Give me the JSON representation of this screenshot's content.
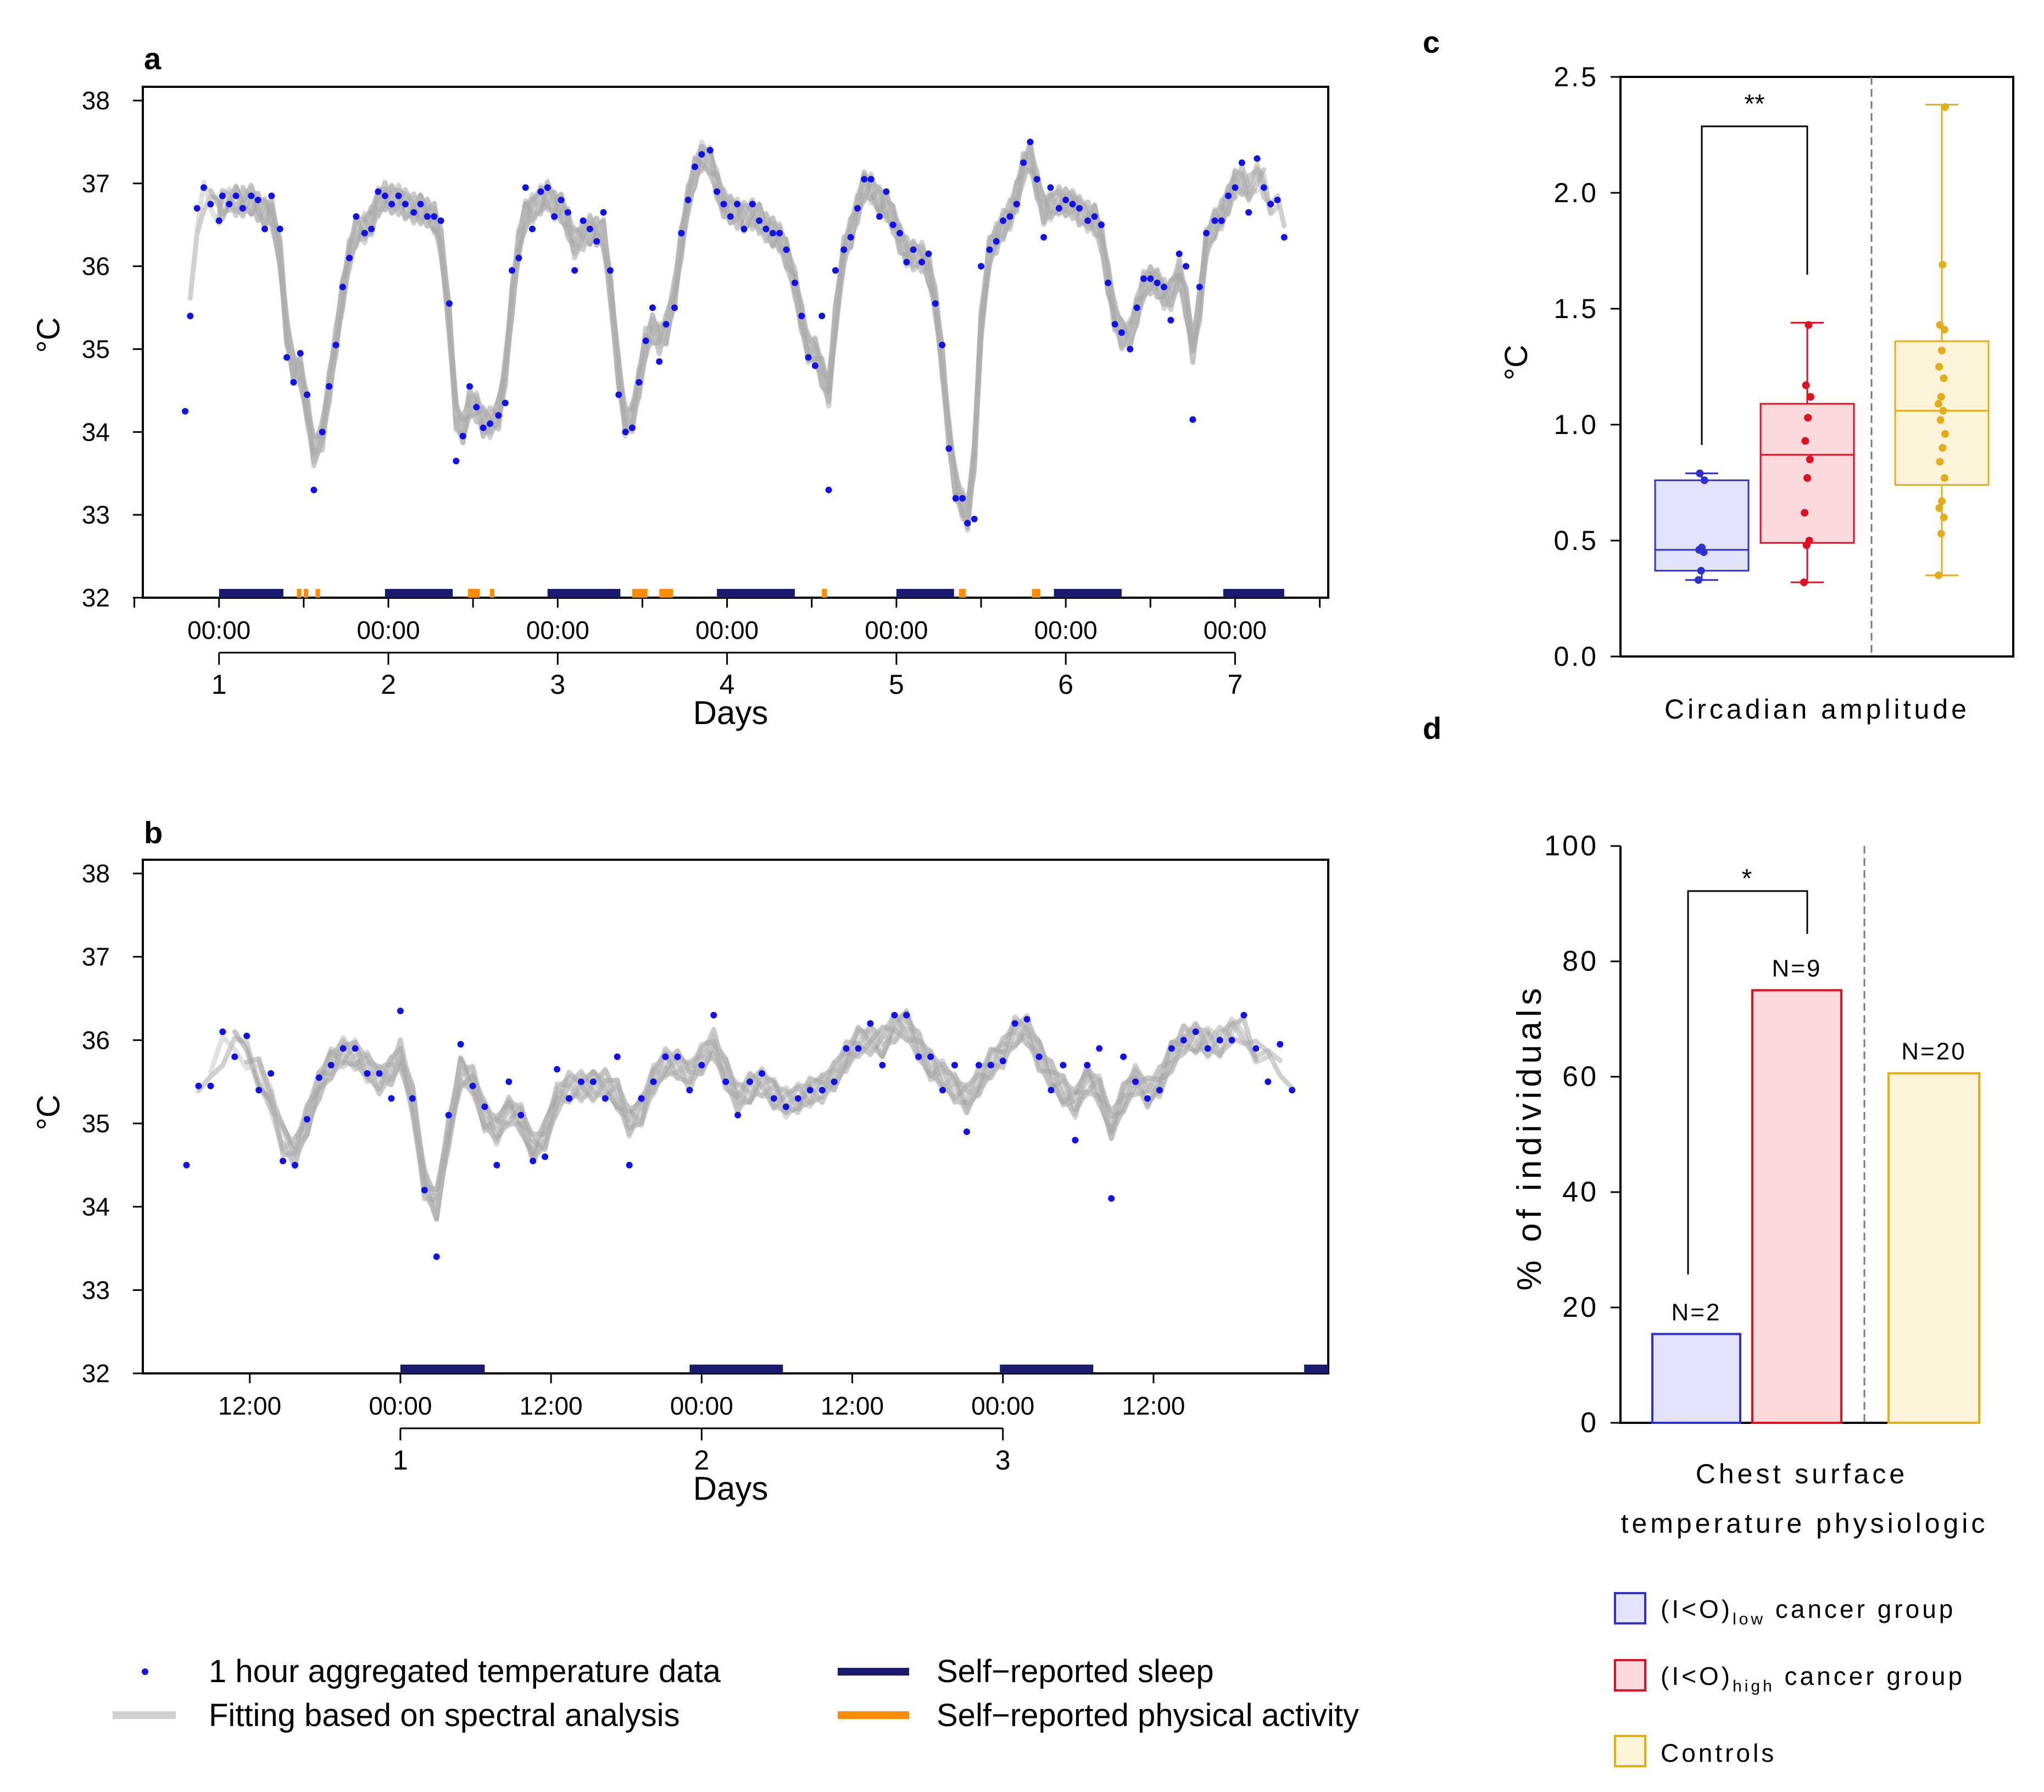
{
  "colors": {
    "temp_point": "#1010f0",
    "fit_line": "#9a9a9a",
    "sleep": "#1a1a6e",
    "activity": "#ff8c00",
    "low_fill": "#e2e2fa",
    "low_stroke": "#3030d0",
    "high_fill": "#fadadd",
    "high_stroke": "#e01020",
    "ctrl_fill": "#fdf3d8",
    "ctrl_stroke": "#e3ad18"
  },
  "panels": {
    "a": {
      "label": "a"
    },
    "b": {
      "label": "b"
    },
    "c": {
      "label": "c"
    },
    "d": {
      "label": "d"
    }
  },
  "legend": {
    "points": "1 hour aggregated temperature data",
    "fit": "Fitting based on spectral analysis",
    "sleep": "Self−reported sleep",
    "activity": "Self−reported physical activity",
    "low_main": "(I<O)",
    "low_sub": "low",
    "low_rest": " cancer group",
    "high_main": "(I<O)",
    "high_sub": "high",
    "high_rest": " cancer group",
    "controls": "Controls"
  },
  "chart_data": [
    {
      "panel": "a",
      "type": "scatter",
      "ylabel": "°C",
      "xlabel": "Days",
      "ylim": [
        32,
        38
      ],
      "yticks": [
        32,
        33,
        34,
        35,
        36,
        37,
        38
      ],
      "xlim": [
        -0.45,
        6.55
      ],
      "time_tick_labels": [
        "00:00",
        "00:00",
        "00:00",
        "00:00",
        "00:00",
        "00:00",
        "00:00"
      ],
      "day_labels": [
        "1",
        "2",
        "3",
        "4",
        "5",
        "6",
        "7"
      ],
      "fit_curves": 8,
      "sleep_intervals": [
        [
          0.0,
          0.38
        ],
        [
          0.98,
          1.38
        ],
        [
          1.94,
          2.37
        ],
        [
          2.94,
          3.4
        ],
        [
          4.0,
          4.34
        ],
        [
          4.93,
          5.33
        ],
        [
          5.93,
          6.29
        ]
      ],
      "activity_intervals": [
        [
          0.46,
          0.48
        ],
        [
          0.5,
          0.52
        ],
        [
          0.57,
          0.59
        ],
        [
          1.47,
          1.54
        ],
        [
          1.6,
          1.62
        ],
        [
          2.44,
          2.53
        ],
        [
          2.6,
          2.68
        ],
        [
          3.56,
          3.59
        ],
        [
          4.37,
          4.41
        ],
        [
          4.8,
          4.85
        ]
      ],
      "points": [
        [
          -0.2,
          34.25
        ],
        [
          -0.17,
          35.4
        ],
        [
          -0.13,
          36.7
        ],
        [
          -0.09,
          36.95
        ],
        [
          -0.05,
          36.75
        ],
        [
          0.0,
          36.55
        ],
        [
          0.02,
          36.85
        ],
        [
          0.06,
          36.75
        ],
        [
          0.1,
          36.85
        ],
        [
          0.14,
          36.7
        ],
        [
          0.19,
          36.85
        ],
        [
          0.23,
          36.8
        ],
        [
          0.27,
          36.45
        ],
        [
          0.31,
          36.85
        ],
        [
          0.36,
          36.45
        ],
        [
          0.4,
          34.9
        ],
        [
          0.44,
          34.6
        ],
        [
          0.48,
          34.95
        ],
        [
          0.52,
          34.45
        ],
        [
          0.56,
          33.3
        ],
        [
          0.61,
          34.0
        ],
        [
          0.65,
          34.55
        ],
        [
          0.69,
          35.05
        ],
        [
          0.73,
          35.75
        ],
        [
          0.77,
          36.1
        ],
        [
          0.81,
          36.6
        ],
        [
          0.86,
          36.4
        ],
        [
          0.9,
          36.45
        ],
        [
          0.94,
          36.9
        ],
        [
          0.98,
          36.85
        ],
        [
          1.02,
          36.75
        ],
        [
          1.06,
          36.85
        ],
        [
          1.1,
          36.75
        ],
        [
          1.15,
          36.65
        ],
        [
          1.19,
          36.75
        ],
        [
          1.23,
          36.6
        ],
        [
          1.27,
          36.6
        ],
        [
          1.31,
          36.55
        ],
        [
          1.36,
          35.55
        ],
        [
          1.4,
          33.65
        ],
        [
          1.44,
          33.95
        ],
        [
          1.48,
          34.55
        ],
        [
          1.52,
          34.3
        ],
        [
          1.56,
          34.05
        ],
        [
          1.6,
          34.1
        ],
        [
          1.65,
          34.2
        ],
        [
          1.69,
          34.35
        ],
        [
          1.73,
          35.95
        ],
        [
          1.77,
          36.1
        ],
        [
          1.81,
          36.95
        ],
        [
          1.85,
          36.45
        ],
        [
          1.9,
          36.9
        ],
        [
          1.94,
          36.95
        ],
        [
          1.98,
          36.6
        ],
        [
          2.02,
          36.8
        ],
        [
          2.06,
          36.65
        ],
        [
          2.1,
          35.95
        ],
        [
          2.15,
          36.55
        ],
        [
          2.19,
          36.45
        ],
        [
          2.23,
          36.3
        ],
        [
          2.27,
          36.65
        ],
        [
          2.31,
          35.95
        ],
        [
          2.36,
          34.45
        ],
        [
          2.4,
          34.0
        ],
        [
          2.44,
          34.05
        ],
        [
          2.48,
          34.6
        ],
        [
          2.52,
          35.1
        ],
        [
          2.56,
          35.5
        ],
        [
          2.6,
          34.85
        ],
        [
          2.64,
          35.3
        ],
        [
          2.69,
          35.5
        ],
        [
          2.73,
          36.4
        ],
        [
          2.77,
          36.8
        ],
        [
          2.81,
          37.2
        ],
        [
          2.85,
          37.35
        ],
        [
          2.9,
          37.4
        ],
        [
          2.94,
          36.9
        ],
        [
          2.98,
          36.75
        ],
        [
          3.02,
          36.6
        ],
        [
          3.06,
          36.75
        ],
        [
          3.1,
          36.45
        ],
        [
          3.15,
          36.75
        ],
        [
          3.19,
          36.55
        ],
        [
          3.23,
          36.45
        ],
        [
          3.27,
          36.4
        ],
        [
          3.31,
          36.4
        ],
        [
          3.35,
          36.2
        ],
        [
          3.4,
          35.8
        ],
        [
          3.44,
          35.4
        ],
        [
          3.48,
          34.9
        ],
        [
          3.52,
          34.8
        ],
        [
          3.56,
          35.4
        ],
        [
          3.6,
          33.3
        ],
        [
          3.64,
          35.95
        ],
        [
          3.69,
          36.2
        ],
        [
          3.73,
          36.35
        ],
        [
          3.77,
          36.7
        ],
        [
          3.81,
          37.05
        ],
        [
          3.85,
          37.05
        ],
        [
          3.9,
          36.6
        ],
        [
          3.94,
          36.9
        ],
        [
          3.98,
          36.5
        ],
        [
          4.02,
          36.4
        ],
        [
          4.06,
          36.05
        ],
        [
          4.1,
          36.2
        ],
        [
          4.15,
          36.05
        ],
        [
          4.19,
          36.15
        ],
        [
          4.23,
          35.55
        ],
        [
          4.27,
          35.05
        ],
        [
          4.31,
          33.8
        ],
        [
          4.35,
          33.2
        ],
        [
          4.39,
          33.2
        ],
        [
          4.42,
          32.9
        ],
        [
          4.46,
          32.95
        ],
        [
          4.5,
          36.0
        ],
        [
          4.55,
          36.2
        ],
        [
          4.59,
          36.3
        ],
        [
          4.63,
          36.55
        ],
        [
          4.67,
          36.6
        ],
        [
          4.71,
          36.75
        ],
        [
          4.75,
          37.25
        ],
        [
          4.79,
          37.5
        ],
        [
          4.83,
          37.05
        ],
        [
          4.87,
          36.35
        ],
        [
          4.91,
          36.95
        ],
        [
          4.96,
          36.7
        ],
        [
          5.0,
          36.8
        ],
        [
          5.04,
          36.75
        ],
        [
          5.08,
          36.7
        ],
        [
          5.13,
          36.55
        ],
        [
          5.17,
          36.6
        ],
        [
          5.21,
          36.5
        ],
        [
          5.25,
          35.8
        ],
        [
          5.29,
          35.3
        ],
        [
          5.33,
          35.2
        ],
        [
          5.38,
          35.0
        ],
        [
          5.42,
          35.5
        ],
        [
          5.46,
          35.85
        ],
        [
          5.5,
          35.85
        ],
        [
          5.54,
          35.8
        ],
        [
          5.58,
          35.75
        ],
        [
          5.62,
          35.35
        ],
        [
          5.67,
          36.15
        ],
        [
          5.71,
          36.0
        ],
        [
          5.75,
          34.15
        ],
        [
          5.79,
          35.75
        ],
        [
          5.83,
          36.4
        ],
        [
          5.88,
          36.55
        ],
        [
          5.92,
          36.55
        ],
        [
          5.96,
          36.85
        ],
        [
          6.0,
          36.95
        ],
        [
          6.04,
          37.25
        ],
        [
          6.08,
          36.65
        ],
        [
          6.13,
          37.3
        ],
        [
          6.17,
          36.95
        ],
        [
          6.21,
          36.75
        ],
        [
          6.25,
          36.8
        ],
        [
          6.29,
          36.35
        ]
      ]
    },
    {
      "panel": "b",
      "type": "scatter",
      "ylabel": "°C",
      "xlabel": "Days",
      "ylim": [
        32,
        38
      ],
      "yticks": [
        32,
        33,
        34,
        35,
        36,
        37,
        38
      ],
      "xlim": [
        -0.855,
        3.08
      ],
      "time_ticks": [
        -0.5,
        0,
        0.5,
        1,
        1.5,
        2,
        2.5
      ],
      "time_tick_labels": [
        "12:00",
        "00:00",
        "12:00",
        "00:00",
        "12:00",
        "00:00",
        "12:00"
      ],
      "day_labels": [
        "1",
        "2",
        "3"
      ],
      "fit_curves": 8,
      "sleep_intervals": [
        [
          0.0,
          0.28
        ],
        [
          0.96,
          1.27
        ],
        [
          1.99,
          2.3
        ],
        [
          3.0,
          3.08
        ]
      ],
      "points": [
        [
          -0.71,
          34.5
        ],
        [
          -0.67,
          35.45
        ],
        [
          -0.63,
          35.45
        ],
        [
          -0.59,
          36.1
        ],
        [
          -0.55,
          35.8
        ],
        [
          -0.51,
          36.05
        ],
        [
          -0.47,
          35.4
        ],
        [
          -0.43,
          35.6
        ],
        [
          -0.39,
          34.55
        ],
        [
          -0.35,
          34.5
        ],
        [
          -0.31,
          35.05
        ],
        [
          -0.27,
          35.55
        ],
        [
          -0.23,
          35.7
        ],
        [
          -0.19,
          35.9
        ],
        [
          -0.15,
          35.9
        ],
        [
          -0.11,
          35.6
        ],
        [
          -0.07,
          35.6
        ],
        [
          -0.03,
          35.3
        ],
        [
          0.0,
          36.35
        ],
        [
          0.04,
          35.3
        ],
        [
          0.08,
          34.2
        ],
        [
          0.12,
          33.4
        ],
        [
          0.16,
          35.1
        ],
        [
          0.2,
          35.95
        ],
        [
          0.24,
          35.45
        ],
        [
          0.28,
          35.2
        ],
        [
          0.32,
          34.5
        ],
        [
          0.36,
          35.5
        ],
        [
          0.4,
          35.1
        ],
        [
          0.44,
          34.55
        ],
        [
          0.48,
          34.6
        ],
        [
          0.52,
          35.65
        ],
        [
          0.56,
          35.3
        ],
        [
          0.6,
          35.5
        ],
        [
          0.64,
          35.5
        ],
        [
          0.68,
          35.3
        ],
        [
          0.72,
          35.8
        ],
        [
          0.76,
          34.5
        ],
        [
          0.8,
          35.3
        ],
        [
          0.84,
          35.5
        ],
        [
          0.88,
          35.8
        ],
        [
          0.92,
          35.8
        ],
        [
          0.96,
          35.4
        ],
        [
          1.0,
          35.7
        ],
        [
          1.04,
          36.3
        ],
        [
          1.08,
          35.5
        ],
        [
          1.12,
          35.1
        ],
        [
          1.16,
          35.5
        ],
        [
          1.2,
          35.6
        ],
        [
          1.24,
          35.3
        ],
        [
          1.28,
          35.2
        ],
        [
          1.32,
          35.3
        ],
        [
          1.36,
          35.4
        ],
        [
          1.4,
          35.4
        ],
        [
          1.44,
          35.5
        ],
        [
          1.48,
          35.9
        ],
        [
          1.52,
          35.9
        ],
        [
          1.56,
          36.2
        ],
        [
          1.6,
          35.7
        ],
        [
          1.64,
          36.3
        ],
        [
          1.68,
          36.3
        ],
        [
          1.72,
          35.8
        ],
        [
          1.76,
          35.8
        ],
        [
          1.8,
          35.4
        ],
        [
          1.84,
          35.7
        ],
        [
          1.88,
          34.9
        ],
        [
          1.92,
          35.7
        ],
        [
          1.96,
          35.7
        ],
        [
          2.0,
          35.75
        ],
        [
          2.04,
          36.2
        ],
        [
          2.08,
          36.25
        ],
        [
          2.12,
          35.8
        ],
        [
          2.16,
          35.4
        ],
        [
          2.2,
          35.7
        ],
        [
          2.24,
          34.8
        ],
        [
          2.28,
          35.7
        ],
        [
          2.32,
          35.9
        ],
        [
          2.36,
          34.1
        ],
        [
          2.4,
          35.8
        ],
        [
          2.44,
          35.5
        ],
        [
          2.48,
          35.3
        ],
        [
          2.52,
          35.4
        ],
        [
          2.56,
          35.9
        ],
        [
          2.6,
          36.0
        ],
        [
          2.64,
          36.1
        ],
        [
          2.68,
          35.9
        ],
        [
          2.72,
          36.0
        ],
        [
          2.76,
          36.0
        ],
        [
          2.8,
          36.3
        ],
        [
          2.84,
          35.9
        ],
        [
          2.88,
          35.5
        ],
        [
          2.92,
          35.95
        ],
        [
          2.96,
          35.4
        ]
      ]
    },
    {
      "panel": "c",
      "type": "box",
      "ylabel": "°C",
      "ylim": [
        0,
        2.5
      ],
      "yticks": [
        "0.0",
        "0.5",
        "1.0",
        "1.5",
        "2.0",
        "2.5"
      ],
      "xlabel": "Circadian amplitude",
      "significance": "**",
      "groups": [
        {
          "name": "(I<O)low cancer group",
          "min": 0.33,
          "q1": 0.37,
          "median": 0.46,
          "q3": 0.76,
          "max": 0.79,
          "points": [
            0.33,
            0.37,
            0.45,
            0.46,
            0.47,
            0.76,
            0.79
          ]
        },
        {
          "name": "(I<O)high cancer group",
          "min": 0.32,
          "q1": 0.49,
          "median": 0.87,
          "q3": 1.09,
          "max": 1.44,
          "points": [
            0.32,
            0.48,
            0.5,
            0.62,
            0.77,
            0.85,
            0.93,
            1.03,
            1.12,
            1.17,
            1.43
          ]
        },
        {
          "name": "Controls",
          "min": 0.35,
          "q1": 0.74,
          "median": 1.06,
          "q3": 1.36,
          "max": 2.38,
          "points": [
            0.35,
            0.53,
            0.6,
            0.64,
            0.67,
            0.77,
            0.84,
            0.9,
            0.96,
            1.02,
            1.06,
            1.09,
            1.12,
            1.2,
            1.25,
            1.32,
            1.41,
            1.43,
            1.69,
            2.37
          ]
        }
      ]
    },
    {
      "panel": "d",
      "type": "bar",
      "ylabel": "% of individuals",
      "ylim": [
        0,
        100
      ],
      "yticks": [
        "0",
        "20",
        "40",
        "60",
        "80",
        "100"
      ],
      "xlabel_line1": "Chest surface",
      "xlabel_line2": "temperature physiologic",
      "significance": "*",
      "categories": [
        "(I<O)low cancer group",
        "(I<O)high cancer group",
        "Controls"
      ],
      "values": [
        15.4,
        75,
        60.6
      ],
      "n_labels": [
        "N=2",
        "N=9",
        "N=20"
      ]
    }
  ]
}
